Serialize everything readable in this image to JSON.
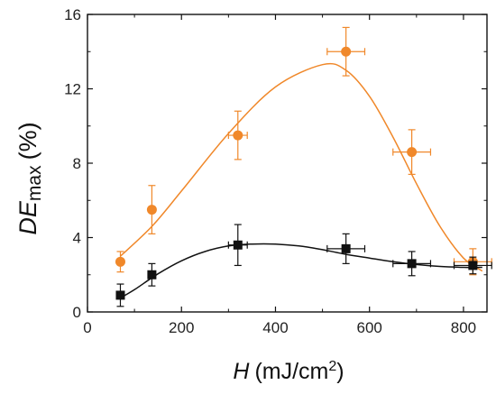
{
  "chart_data": {
    "type": "scatter",
    "xlabel": {
      "symbol": "H",
      "unit_pre": "(mJ/cm",
      "unit_sup": "2",
      "unit_post": ")"
    },
    "ylabel": {
      "symbol": "DE",
      "subscript": "max",
      "unit": "(%)"
    },
    "xlim": [
      0,
      850
    ],
    "ylim": [
      0,
      16
    ],
    "x_ticks": [
      0,
      200,
      400,
      600,
      800
    ],
    "y_ticks": [
      0,
      4,
      8,
      12,
      16
    ],
    "x_tick_labels": [
      "0",
      "200",
      "400",
      "600",
      "800"
    ],
    "y_tick_labels": [
      "0",
      "4",
      "8",
      "12",
      "16"
    ],
    "grid": false,
    "legend": "none",
    "series": [
      {
        "marker": "circle",
        "color": "#f0882a",
        "points": [
          {
            "x": 70,
            "y": 2.7,
            "yerr": 0.55,
            "xerr": 0
          },
          {
            "x": 137,
            "y": 5.5,
            "yerr": 1.3,
            "xerr": 0
          },
          {
            "x": 320,
            "y": 9.5,
            "yerr": 1.3,
            "xerr": 20
          },
          {
            "x": 550,
            "y": 14.0,
            "yerr": 1.3,
            "xerr": 40
          },
          {
            "x": 690,
            "y": 8.6,
            "yerr": 1.2,
            "xerr": 40
          },
          {
            "x": 820,
            "y": 2.7,
            "yerr": 0.7,
            "xerr": 40
          }
        ],
        "fit": [
          [
            70,
            3.0
          ],
          [
            137,
            4.6
          ],
          [
            200,
            6.5
          ],
          [
            300,
            9.6
          ],
          [
            400,
            12.1
          ],
          [
            500,
            13.3
          ],
          [
            550,
            13.0
          ],
          [
            600,
            11.6
          ],
          [
            650,
            9.4
          ],
          [
            700,
            6.9
          ],
          [
            750,
            4.6
          ],
          [
            800,
            2.9
          ],
          [
            840,
            2.2
          ]
        ]
      },
      {
        "marker": "square",
        "color": "#111111",
        "points": [
          {
            "x": 70,
            "y": 0.9,
            "yerr": 0.6,
            "xerr": 0
          },
          {
            "x": 137,
            "y": 2.0,
            "yerr": 0.6,
            "xerr": 0
          },
          {
            "x": 320,
            "y": 3.6,
            "yerr": 1.1,
            "xerr": 20
          },
          {
            "x": 550,
            "y": 3.4,
            "yerr": 0.8,
            "xerr": 40
          },
          {
            "x": 690,
            "y": 2.6,
            "yerr": 0.65,
            "xerr": 40
          },
          {
            "x": 820,
            "y": 2.5,
            "yerr": 0.45,
            "xerr": 40
          }
        ],
        "fit": [
          [
            70,
            0.75
          ],
          [
            100,
            1.2
          ],
          [
            150,
            2.05
          ],
          [
            200,
            2.75
          ],
          [
            250,
            3.25
          ],
          [
            300,
            3.55
          ],
          [
            350,
            3.65
          ],
          [
            400,
            3.65
          ],
          [
            450,
            3.55
          ],
          [
            500,
            3.35
          ],
          [
            550,
            3.1
          ],
          [
            600,
            2.9
          ],
          [
            650,
            2.7
          ],
          [
            700,
            2.55
          ],
          [
            750,
            2.45
          ],
          [
            800,
            2.4
          ],
          [
            840,
            2.4
          ]
        ]
      }
    ]
  }
}
